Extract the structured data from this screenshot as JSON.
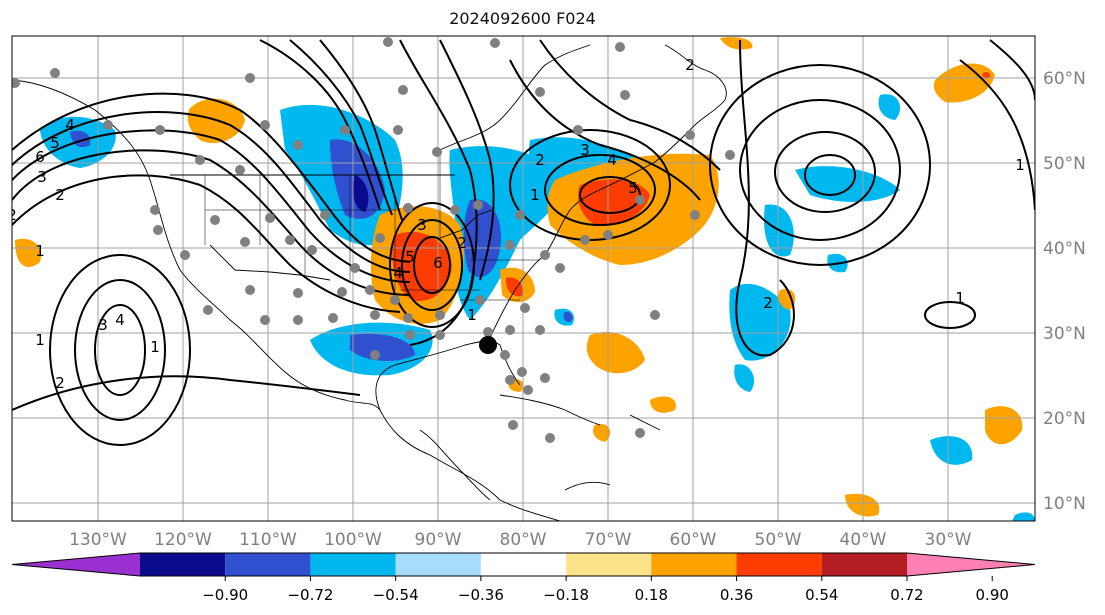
{
  "title": "2024092600 F024",
  "lon_labels": [
    "130°W",
    "120°W",
    "110°W",
    "100°W",
    "90°W",
    "80°W",
    "70°W",
    "60°W",
    "50°W",
    "40°W",
    "30°W"
  ],
  "lat_labels": [
    "60°N",
    "50°N",
    "40°N",
    "30°N",
    "20°N",
    "10°N"
  ],
  "colorbar": {
    "ticks": [
      "−0.90",
      "−0.72",
      "−0.54",
      "−0.36",
      "−0.18",
      "0.18",
      "0.36",
      "0.54",
      "0.72",
      "0.90"
    ],
    "colors": [
      "#9b30d0",
      "#0a0a8c",
      "#3050d0",
      "#00b8f0",
      "#a8dcfc",
      "#ffffff",
      "#fce38a",
      "#fca300",
      "#fc3c00",
      "#b41e23",
      "#fc80b4"
    ]
  },
  "contour_labels": [
    "6",
    "5",
    "4",
    "3",
    "2",
    "1",
    "2",
    "1",
    "1",
    "4",
    "3",
    "2",
    "6",
    "5",
    "4",
    "3",
    "2",
    "1",
    "5",
    "4",
    "3",
    "2",
    "1",
    "2",
    "2",
    "1",
    "1"
  ],
  "colors": {
    "land_line": "#000000",
    "grid": "#a0a0a0",
    "label": "#808080",
    "station": "#808080"
  }
}
